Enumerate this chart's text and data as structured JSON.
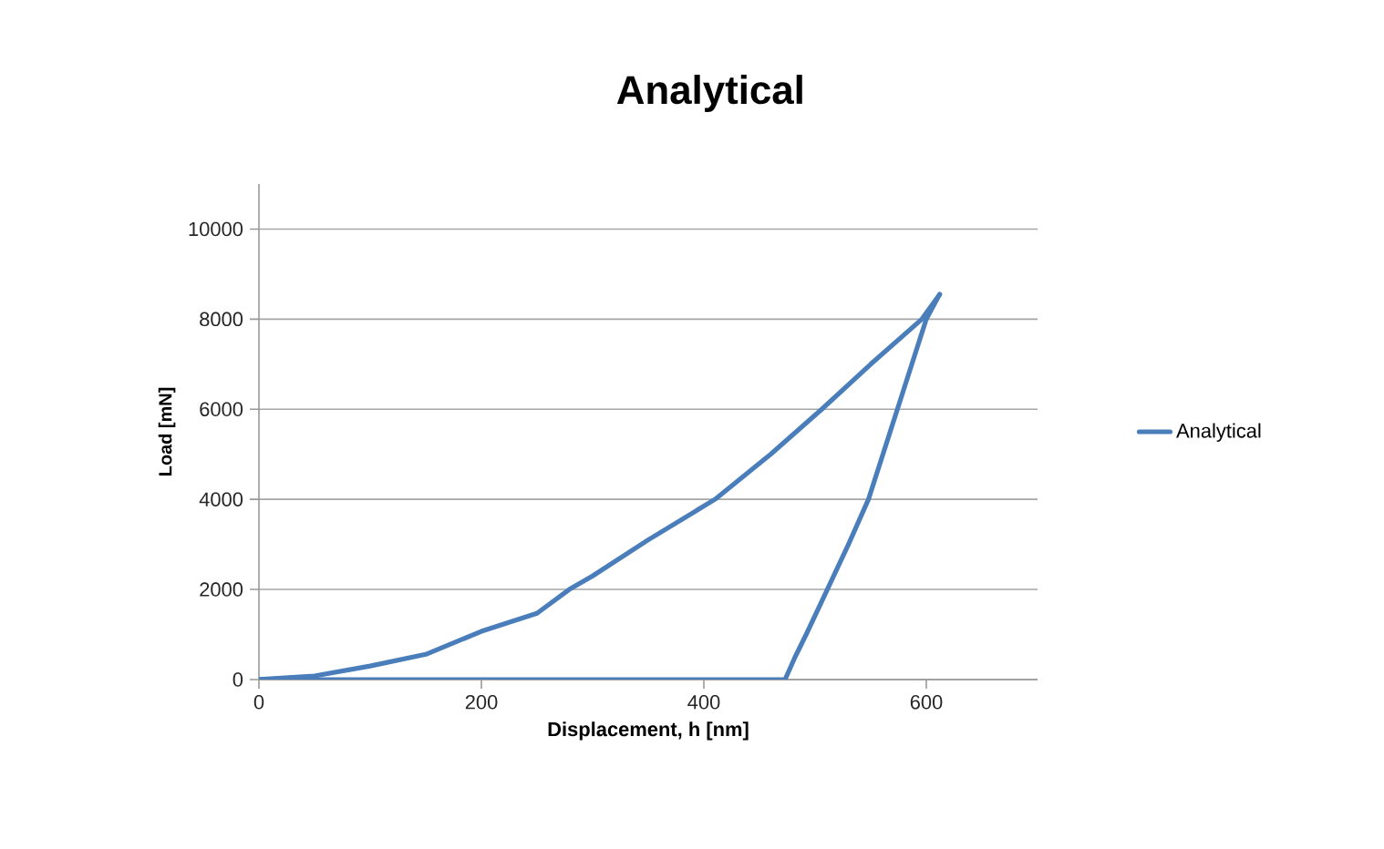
{
  "chart_data": {
    "type": "line",
    "title": "Analytical",
    "xlabel": "Displacement, h [nm]",
    "ylabel": "Load [mN]",
    "series": [
      {
        "name": "Analytical",
        "color": "#4a7ebb",
        "x": [
          0,
          50,
          100,
          150,
          200,
          250,
          279,
          300,
          350,
          410,
          460,
          506,
          550,
          596,
          612
        ],
        "values": [
          0,
          80,
          300,
          560,
          1070,
          1470,
          2000,
          2300,
          3100,
          4000,
          5000,
          6000,
          7000,
          8000,
          8550
        ]
      },
      {
        "color": "#4a7ebb",
        "x": [
          0,
          473,
          482,
          492,
          511,
          530,
          548,
          574,
          600,
          612
        ],
        "values": [
          0,
          0,
          500,
          1000,
          2000,
          3000,
          4000,
          6000,
          8000,
          8550
        ]
      }
    ],
    "xlim": [
      0,
      700
    ],
    "xticks": [
      0,
      200,
      400,
      600
    ],
    "ylim": [
      0,
      11000
    ],
    "yticks": [
      0,
      2000,
      4000,
      6000,
      8000,
      10000
    ],
    "grid": "y",
    "legend": "right",
    "marker": "none",
    "line_style": "solid"
  }
}
